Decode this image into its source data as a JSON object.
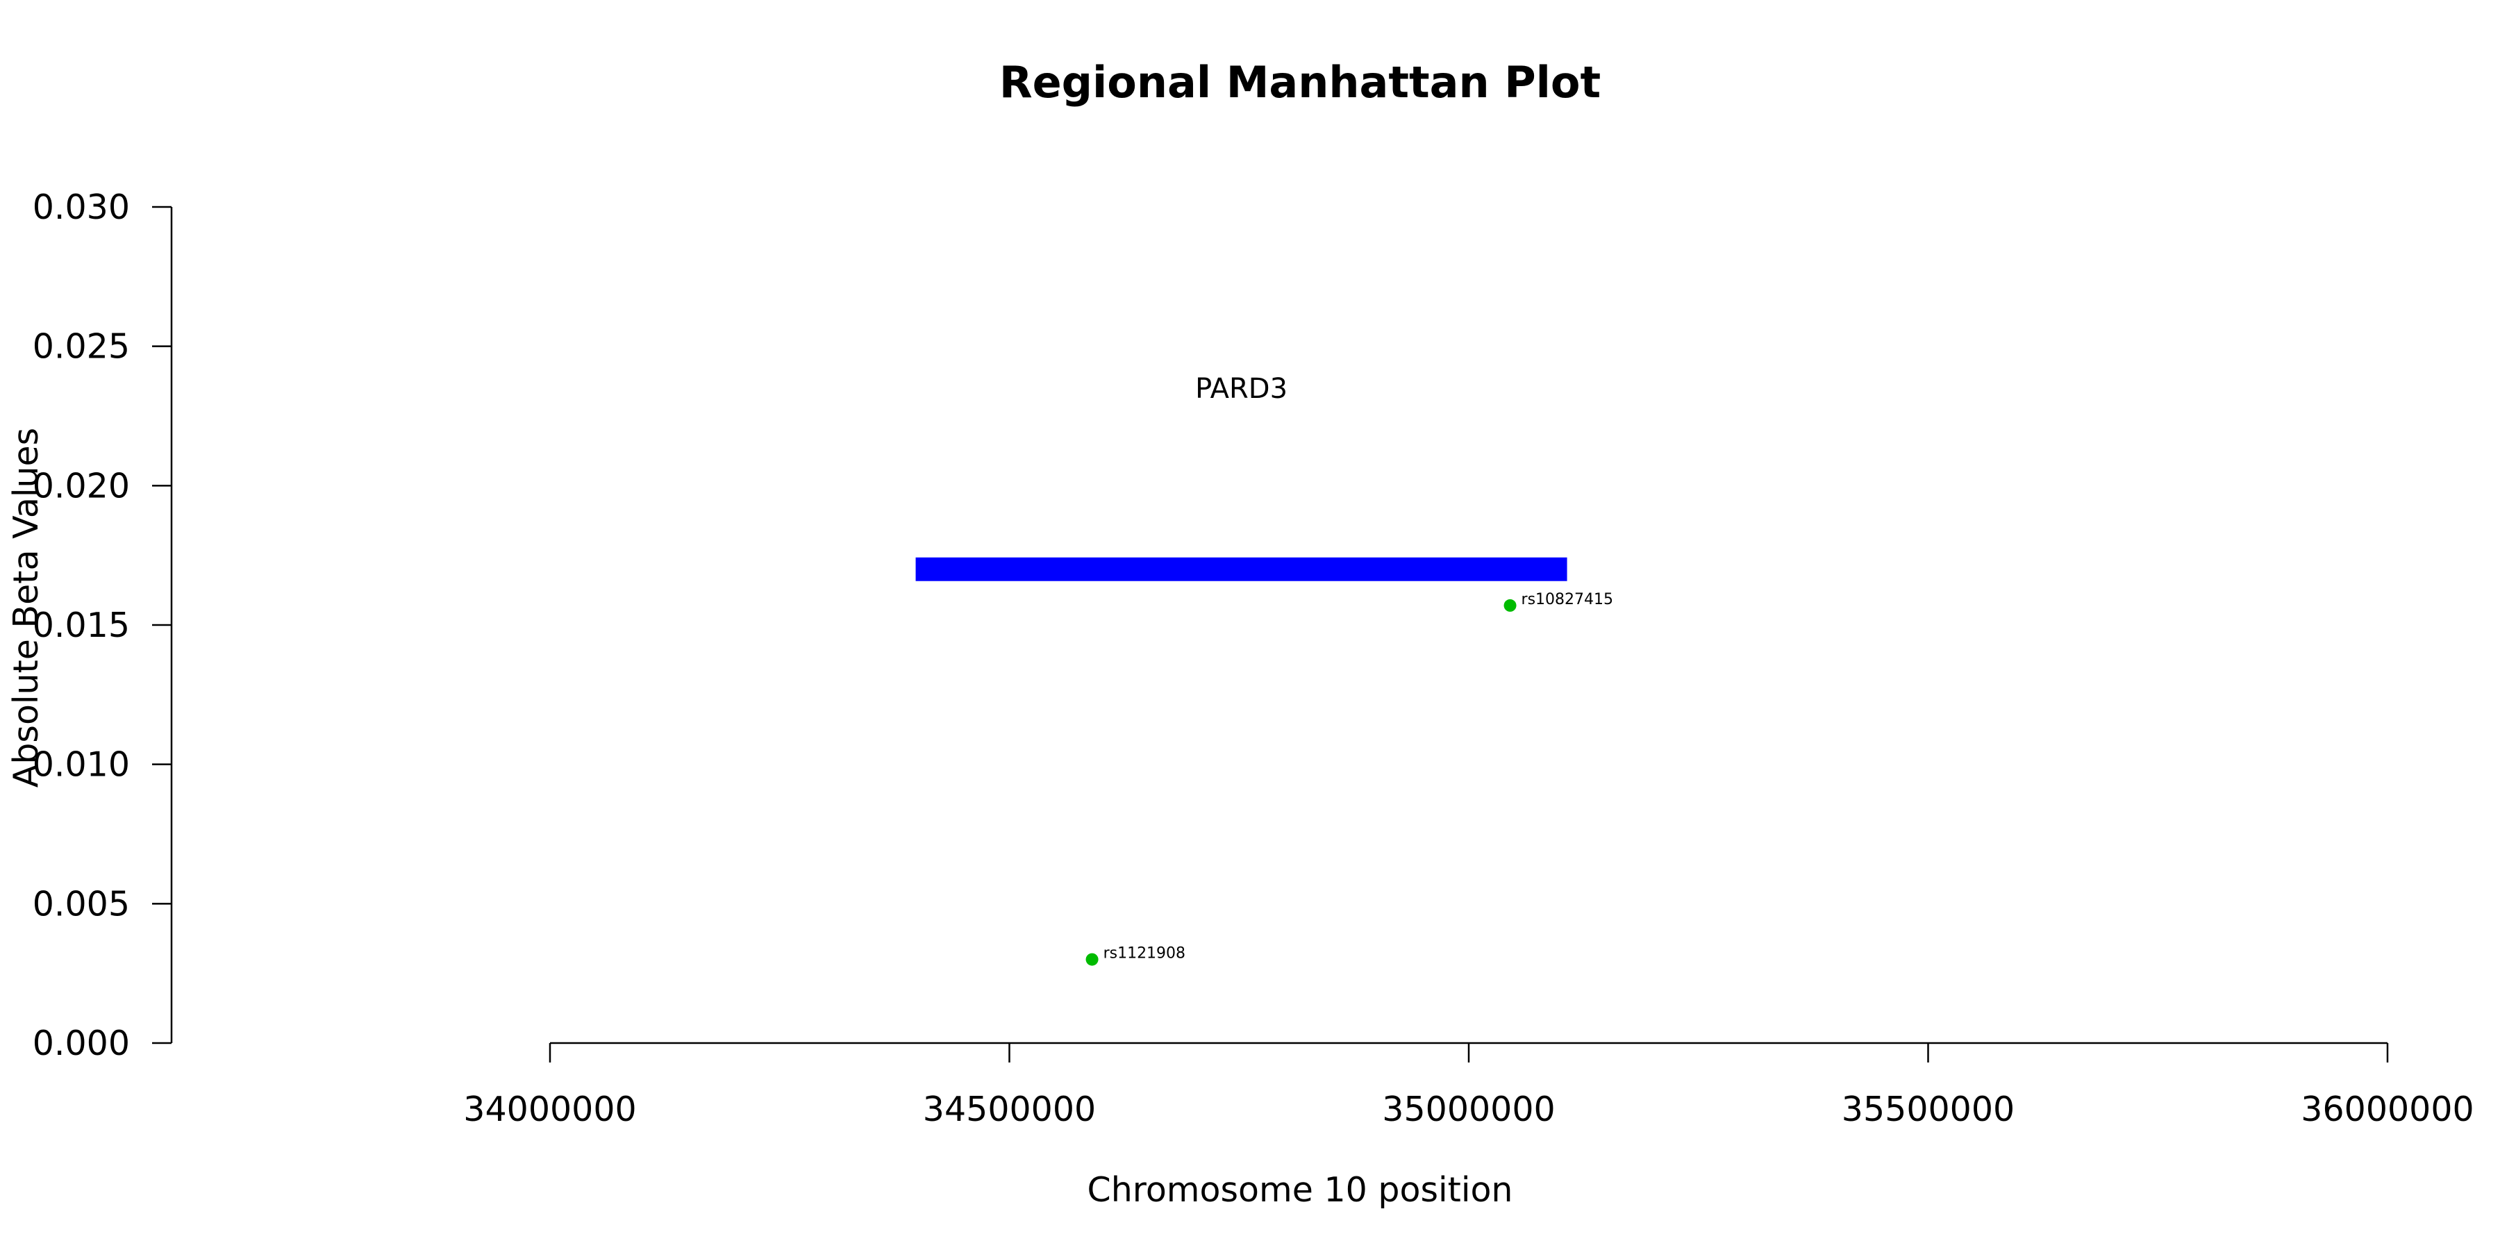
{
  "chart_data": {
    "type": "scatter",
    "title": "Regional Manhattan Plot",
    "xlabel": "Chromosome 10 position",
    "ylabel": "Absolute Beta Values",
    "xlim": [
      34000000,
      36000000
    ],
    "ylim": [
      0,
      0.03
    ],
    "x_ticks": [
      34000000,
      34500000,
      35000000,
      35500000,
      36000000
    ],
    "x_tick_labels": [
      "34000000",
      "34500000",
      "35000000",
      "35500000",
      "36000000"
    ],
    "y_ticks": [
      0,
      0.005,
      0.01,
      0.015,
      0.02,
      0.025,
      0.03
    ],
    "y_tick_labels": [
      "0.000",
      "0.005",
      "0.010",
      "0.015",
      "0.020",
      "0.025",
      "0.030"
    ],
    "grid": false,
    "points": [
      {
        "label": "rs1121908",
        "x": 34590000,
        "y": 0.003,
        "color": "#00bb00"
      },
      {
        "label": "rs10827415",
        "x": 35045000,
        "y": 0.0157,
        "color": "#00bb00"
      }
    ],
    "gene": {
      "name": "PARD3",
      "start": 34398000,
      "end": 35107000,
      "y": 0.017,
      "color": "#0000ff",
      "label_y": 0.0235
    }
  }
}
